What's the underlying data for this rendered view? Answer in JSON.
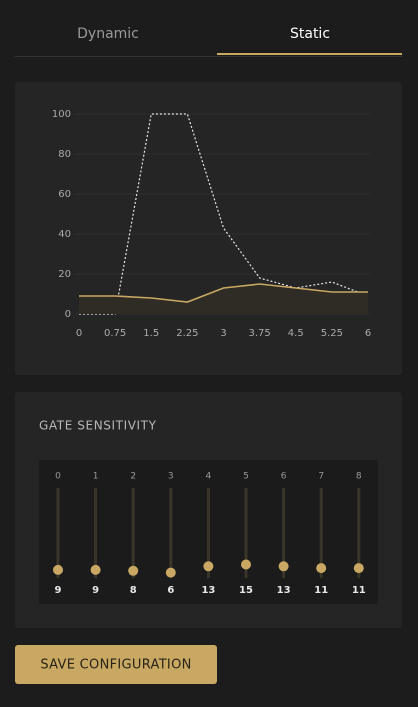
{
  "tabs": {
    "items": [
      "Dynamic",
      "Static"
    ],
    "active": 1
  },
  "chart_data": {
    "type": "line",
    "x": [
      0,
      0.75,
      1.5,
      2.25,
      3,
      3.75,
      4.5,
      5.25,
      6
    ],
    "xlim": [
      0,
      6
    ],
    "xticks": [
      0,
      0.75,
      1.5,
      2.25,
      3,
      3.75,
      4.5,
      5.25,
      6
    ],
    "ylim": [
      0,
      100
    ],
    "yticks": [
      0,
      20,
      40,
      60,
      80,
      100
    ],
    "grid": true,
    "series": [
      {
        "color": "#e6e6e6",
        "dashed": true,
        "values": [
          0,
          0,
          100,
          100,
          43,
          18,
          13,
          16,
          9
        ]
      },
      {
        "color": "#c9a863",
        "area": true,
        "values": [
          9,
          9,
          8,
          6,
          13,
          15,
          13,
          11,
          11
        ]
      }
    ]
  },
  "gate_sensitivity": {
    "title": "GATE SENSITIVITY",
    "channels": [
      0,
      1,
      2,
      3,
      4,
      5,
      6,
      7,
      8
    ]
  },
  "button": "SAVE CONFIGURATION"
}
